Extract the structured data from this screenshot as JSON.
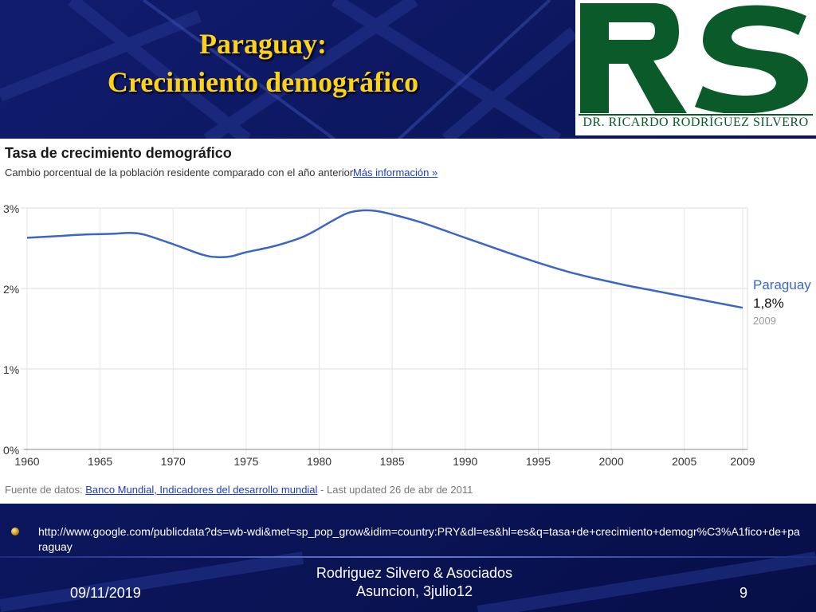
{
  "slide": {
    "title_line1": "Paraguay:",
    "title_line2": "Crecimiento demográfico",
    "logo_caption": "DR. RICARDO RODRÍGUEZ SILVERO",
    "logo_letters": "RS",
    "bullet_url": "http://www.google.com/publicdata?ds=wb-wdi&met=sp_pop_grow&idim=country:PRY&dl=es&hl=es&q=tasa+de+crecimiento+demogr%C3%A1fico+de+paraguay",
    "footer_date": "09/11/2019",
    "footer_center_line1": "Rodriguez Silvero & Asociados",
    "footer_center_line2": "Asuncion, 3julio12",
    "footer_page": "9"
  },
  "chart_header": {
    "title": "Tasa de crecimiento demográfico",
    "subtitle": "Cambio porcentual de la población residente comparado con el año anterior",
    "more_info": "Más información »",
    "source_label": "Fuente de datos:",
    "source_link": "Banco Mundial, Indicadores del desarrollo mundial",
    "source_updated": " - Last updated 26 de abr de 2011"
  },
  "colors": {
    "background": "#0b1560",
    "title": "#ffd21a",
    "line": "#3a66c8",
    "logo_green": "#0a5a2a"
  },
  "chart_data": {
    "type": "line",
    "xlim": [
      1960,
      2009
    ],
    "ylim": [
      0,
      3
    ],
    "x_ticks": [
      1960,
      1965,
      1970,
      1975,
      1980,
      1985,
      1990,
      1995,
      2000,
      2005,
      2009
    ],
    "x_tick_labels": [
      "1960",
      "1965",
      "1970",
      "1975",
      "1980",
      "1985",
      "1990",
      "1995",
      "2000",
      "2005",
      "2009"
    ],
    "y_ticks": [
      0,
      1,
      2,
      3
    ],
    "y_tick_labels": [
      "0%",
      "1%",
      "2%",
      "3%"
    ],
    "grid": true,
    "series": [
      {
        "name": "Paraguay",
        "x": [
          1960,
          1962,
          1964,
          1966,
          1967,
          1968,
          1970,
          1972,
          1973,
          1974,
          1975,
          1977,
          1979,
          1981,
          1982,
          1983,
          1984,
          1985,
          1987,
          1990,
          1993,
          1995,
          1997,
          1999,
          2001,
          2003,
          2005,
          2007,
          2009
        ],
        "y": [
          2.63,
          2.65,
          2.67,
          2.68,
          2.69,
          2.67,
          2.55,
          2.42,
          2.39,
          2.4,
          2.45,
          2.53,
          2.65,
          2.85,
          2.94,
          2.97,
          2.96,
          2.92,
          2.82,
          2.63,
          2.44,
          2.32,
          2.21,
          2.12,
          2.04,
          1.97,
          1.9,
          1.83,
          1.76
        ]
      }
    ],
    "end_label": {
      "name": "Paraguay",
      "value": "1,8%",
      "year": "2009"
    }
  }
}
